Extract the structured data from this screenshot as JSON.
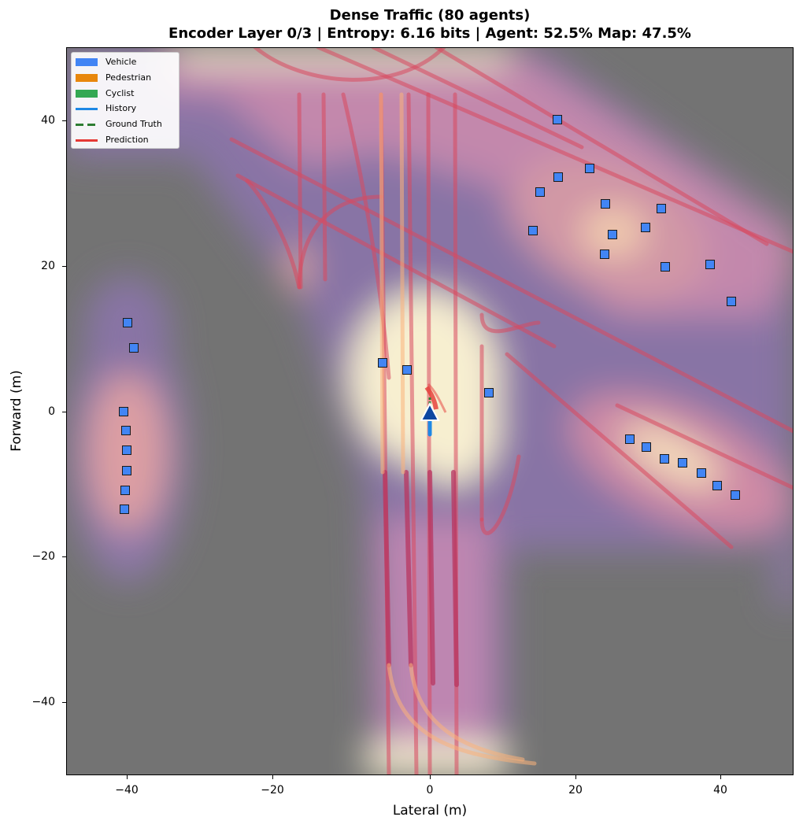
{
  "title": {
    "line1": "Dense Traffic (80 agents)",
    "line2": "Encoder Layer 0/3  |  Entropy: 6.16 bits  |  Agent: 52.5%  Map: 47.5%"
  },
  "axes": {
    "xlabel": "Lateral (m)",
    "ylabel": "Forward (m)",
    "xticks": [
      "−40",
      "−20",
      "0",
      "20",
      "40"
    ],
    "yticks": [
      "40",
      "20",
      "0",
      "−20",
      "−40"
    ]
  },
  "legend": {
    "items": [
      {
        "label": "Vehicle",
        "kind": "patch",
        "color": "#4285f4"
      },
      {
        "label": "Pedestrian",
        "kind": "patch",
        "color": "#e8870c"
      },
      {
        "label": "Cyclist",
        "kind": "patch",
        "color": "#34a853"
      },
      {
        "label": "History",
        "kind": "line",
        "color": "#1e88e5"
      },
      {
        "label": "Ground Truth",
        "kind": "dashed",
        "color": "#2e7d32"
      },
      {
        "label": "Prediction",
        "kind": "line",
        "color": "#e53935"
      }
    ]
  },
  "colors": {
    "background": "#737373",
    "vehicle": "#4285f4",
    "ego": "#0d47a1",
    "history": "#1e88e5",
    "ground_truth": "#2e7d32",
    "prediction": "#e53935"
  },
  "chart_data": {
    "type": "heatmap",
    "title": "Dense Traffic (80 agents)",
    "subtitle": "Encoder Layer 0/3 | Entropy: 6.16 bits | Agent: 52.5% Map: 47.5%",
    "xlabel": "Lateral (m)",
    "ylabel": "Forward (m)",
    "xlim": [
      -50,
      50
    ],
    "ylim": [
      -50,
      50
    ],
    "xticks": [
      -40,
      -20,
      0,
      20,
      40
    ],
    "yticks": [
      -40,
      -20,
      0,
      20,
      40
    ],
    "grid": false,
    "legend_position": "upper left",
    "colormap": "magma-like attention overlay on gray",
    "stats": {
      "encoder_layer": "0/3",
      "entropy_bits": 6.16,
      "agent_attention_pct": 52.5,
      "map_attention_pct": 47.5,
      "num_agents": 80
    },
    "ego": {
      "x": 0,
      "y": 0,
      "heading": "forward"
    },
    "vehicles": [
      {
        "x": 17.5,
        "y": 40.1
      },
      {
        "x": 17.6,
        "y": 32.2
      },
      {
        "x": 22.0,
        "y": 33.4
      },
      {
        "x": 15.2,
        "y": 30.2
      },
      {
        "x": 14.2,
        "y": 24.9
      },
      {
        "x": 24.1,
        "y": 28.5
      },
      {
        "x": 31.8,
        "y": 27.9
      },
      {
        "x": 25.1,
        "y": 24.3
      },
      {
        "x": 29.7,
        "y": 25.3
      },
      {
        "x": 24.0,
        "y": 21.6
      },
      {
        "x": 32.4,
        "y": 19.9
      },
      {
        "x": 38.5,
        "y": 20.2
      },
      {
        "x": 41.5,
        "y": 15.1
      },
      {
        "x": -41.6,
        "y": 12.2
      },
      {
        "x": -40.7,
        "y": 8.8
      },
      {
        "x": -42.1,
        "y": 0.0
      },
      {
        "x": -41.8,
        "y": -2.6
      },
      {
        "x": -41.7,
        "y": -5.3
      },
      {
        "x": -41.7,
        "y": -8.1
      },
      {
        "x": -41.9,
        "y": -10.8
      },
      {
        "x": -42.0,
        "y": -13.4
      },
      {
        "x": -6.5,
        "y": 6.7
      },
      {
        "x": -3.1,
        "y": 5.7
      },
      {
        "x": 8.1,
        "y": 2.6
      },
      {
        "x": 27.5,
        "y": -3.8
      },
      {
        "x": 29.8,
        "y": -4.9
      },
      {
        "x": 32.2,
        "y": -6.5
      },
      {
        "x": 34.7,
        "y": -7.0
      },
      {
        "x": 37.3,
        "y": -8.4
      },
      {
        "x": 39.5,
        "y": -10.2
      },
      {
        "x": 42.0,
        "y": -11.5
      }
    ],
    "attention_hotspots": [
      {
        "x": 0,
        "y": 5,
        "intensity": "high",
        "label": "ego vicinity"
      },
      {
        "x": -10,
        "y": 48,
        "intensity": "high",
        "label": "top intersection"
      },
      {
        "x": 5,
        "y": -48,
        "intensity": "high",
        "label": "bottom lanes"
      },
      {
        "x": 33,
        "y": -6,
        "intensity": "high",
        "label": "lower-right cluster"
      },
      {
        "x": 25,
        "y": 25,
        "intensity": "medium",
        "label": "upper-right cluster"
      },
      {
        "x": -42,
        "y": -8,
        "intensity": "medium",
        "label": "left column"
      },
      {
        "x": -18,
        "y": 20,
        "intensity": "medium",
        "label": "lane terminus"
      }
    ]
  }
}
